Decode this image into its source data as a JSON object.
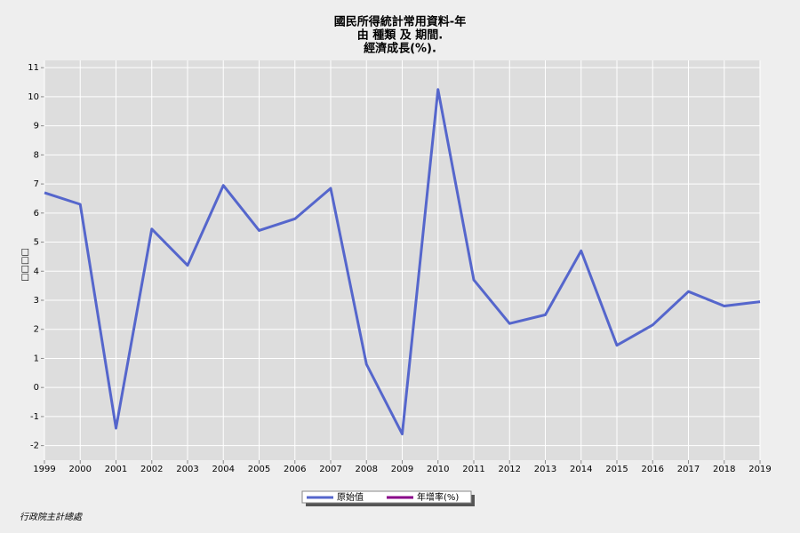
{
  "chart_data": {
    "type": "line",
    "title": [
      "國民所得統計常用資料-年",
      "由 種類 及 期間.",
      "經濟成長(%)."
    ],
    "ylabel": "□□□□",
    "footer": "行政院主計總處",
    "x": [
      1999,
      2000,
      2001,
      2002,
      2003,
      2004,
      2005,
      2006,
      2007,
      2008,
      2009,
      2010,
      2011,
      2012,
      2013,
      2014,
      2015,
      2016,
      2017,
      2018,
      2019
    ],
    "series": [
      {
        "name": "原始值",
        "color": "#5566cc",
        "values": [
          6.7,
          6.3,
          -1.4,
          5.45,
          4.2,
          6.95,
          5.4,
          5.8,
          6.85,
          0.8,
          -1.6,
          10.25,
          3.7,
          2.2,
          2.5,
          4.7,
          1.45,
          2.15,
          3.3,
          2.8,
          2.95
        ]
      },
      {
        "name": "年增率(%)",
        "color": "#880088",
        "values": [
          null,
          null,
          null,
          null,
          null,
          null,
          null,
          null,
          null,
          null,
          null,
          null,
          null,
          null,
          null,
          null,
          null,
          null,
          null,
          null,
          null
        ]
      }
    ],
    "xlim": [
      1999,
      2019
    ],
    "xticks": [
      1999,
      2000,
      2001,
      2002,
      2003,
      2004,
      2005,
      2006,
      2007,
      2008,
      2009,
      2010,
      2011,
      2012,
      2013,
      2014,
      2015,
      2016,
      2017,
      2018,
      2019
    ],
    "ylim": [
      -2.5,
      11.25
    ],
    "yticks": [
      -2,
      -1,
      0,
      1,
      2,
      3,
      4,
      5,
      6,
      7,
      8,
      9,
      10,
      11
    ],
    "grid": true
  }
}
